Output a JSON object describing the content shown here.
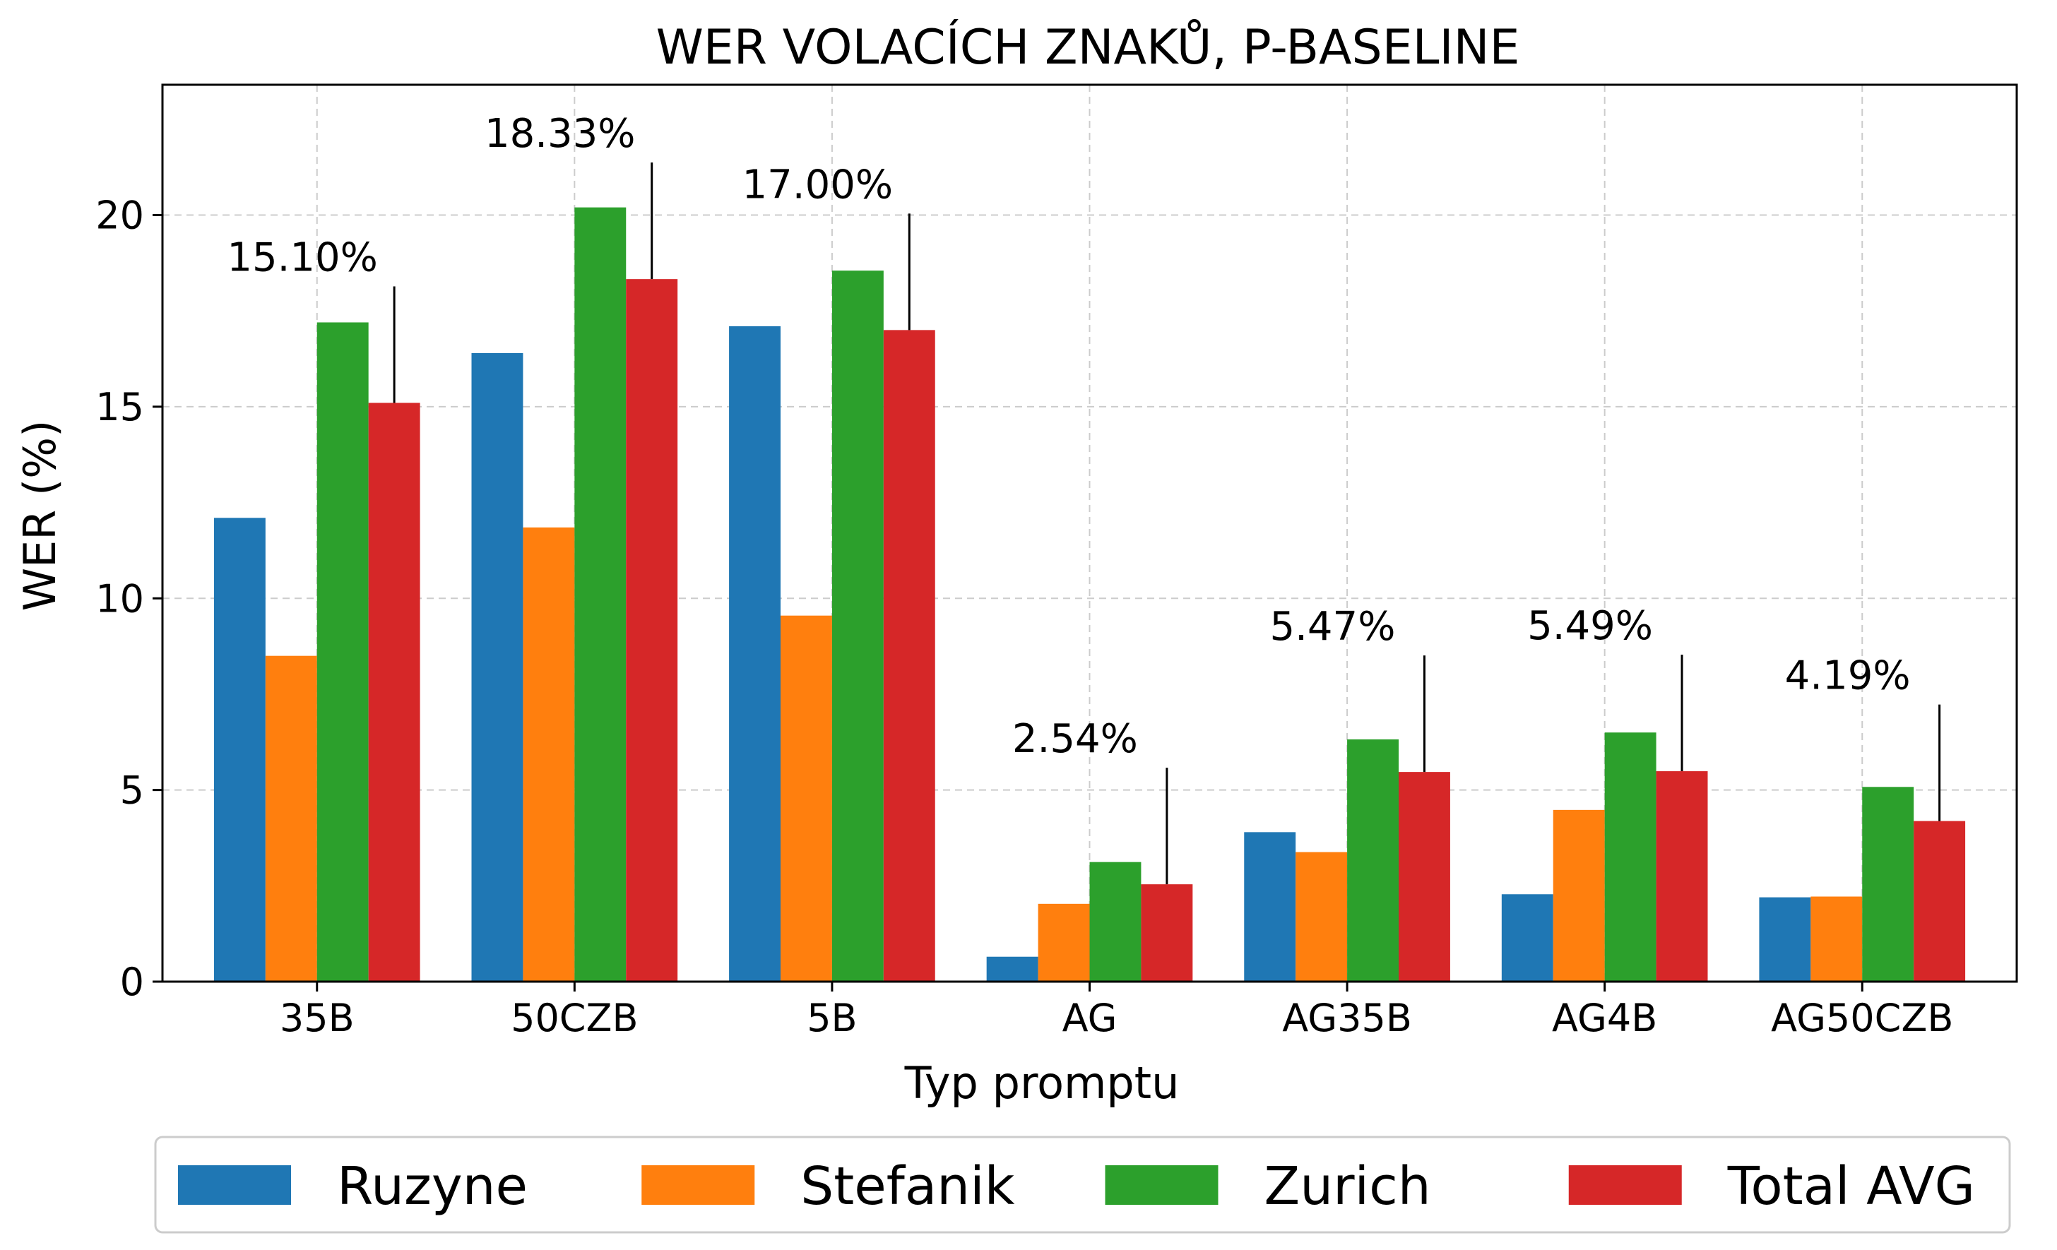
{
  "chart_data": {
    "type": "bar",
    "title": "WER VOLACÍCH ZNAKŮ, P-BASELINE",
    "xlabel": "Typ promptu",
    "ylabel": "WER (%)",
    "categories": [
      "35B",
      "50CZB",
      "5B",
      "AG",
      "AG35B",
      "AG4B",
      "AG50CZB"
    ],
    "series": [
      {
        "name": "Ruzyne",
        "color": "#1f77b4",
        "values": [
          12.1,
          16.4,
          17.1,
          0.65,
          3.9,
          2.28,
          2.2
        ]
      },
      {
        "name": "Stefanik",
        "color": "#ff7f0e",
        "values": [
          8.5,
          11.85,
          9.55,
          2.03,
          3.38,
          4.48,
          2.22
        ]
      },
      {
        "name": "Zurich",
        "color": "#2ca02c",
        "values": [
          17.2,
          20.2,
          18.55,
          3.12,
          6.32,
          6.5,
          5.08
        ]
      },
      {
        "name": "Total AVG",
        "color": "#d62728",
        "values": [
          15.1,
          18.33,
          17.0,
          2.54,
          5.47,
          5.49,
          4.19
        ]
      }
    ],
    "annotations": [
      "15.10%",
      "18.33%",
      "17.00%",
      "2.54%",
      "5.47%",
      "5.49%",
      "4.19%"
    ],
    "yticks": [
      0,
      5,
      10,
      15,
      20
    ],
    "ylim": [
      0,
      23.4
    ],
    "grid": true,
    "legend_position": "bottom"
  }
}
